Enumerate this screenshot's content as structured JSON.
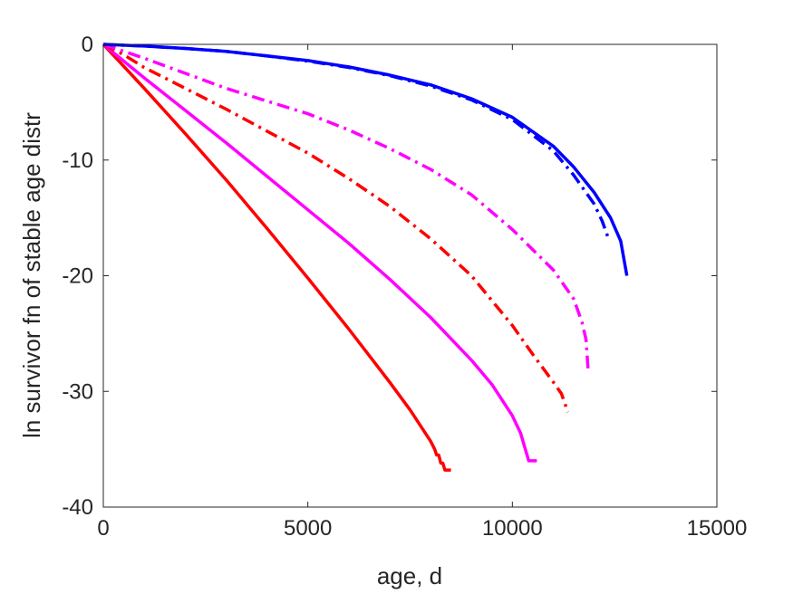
{
  "chart_data": {
    "type": "line",
    "title": "",
    "xlabel": "age, d",
    "ylabel": "ln survivor fn of stable age distr",
    "xlim": [
      0,
      15000
    ],
    "ylim": [
      -40,
      0
    ],
    "xticks": [
      0,
      5000,
      10000,
      15000
    ],
    "yticks": [
      0,
      -10,
      -20,
      -30,
      -40
    ],
    "xtick_labels": [
      "0",
      "5000",
      "10000",
      "15000"
    ],
    "ytick_labels": [
      "0",
      "-10",
      "-20",
      "-30",
      "-40"
    ],
    "grid": false,
    "legend": "none",
    "series": [
      {
        "color": "#ff0000",
        "style": "solid",
        "x": [
          0,
          1000,
          2000,
          3000,
          4000,
          5000,
          6000,
          7000,
          7500,
          8000,
          8100,
          8150,
          8200,
          8250,
          8300,
          8350,
          8500
        ],
        "y": [
          0,
          -3.8,
          -7.7,
          -11.7,
          -15.9,
          -20.2,
          -24.6,
          -29.2,
          -31.6,
          -34.3,
          -35.0,
          -35.5,
          -35.5,
          -36.2,
          -36.2,
          -36.8,
          -36.8
        ]
      },
      {
        "color": "#ff00ff",
        "style": "solid",
        "x": [
          0,
          1000,
          2000,
          3000,
          4000,
          5000,
          6000,
          7000,
          8000,
          9000,
          9500,
          10000,
          10200,
          10300,
          10400,
          10600
        ],
        "y": [
          0,
          -2.9,
          -5.7,
          -8.5,
          -11.4,
          -14.3,
          -17.2,
          -20.3,
          -23.6,
          -27.3,
          -29.4,
          -32.1,
          -33.6,
          -34.8,
          -36.0,
          -36.0
        ]
      },
      {
        "color": "#ff0000",
        "style": "dashdot",
        "x": [
          0,
          500,
          1000,
          2000,
          3000,
          4000,
          5000,
          6000,
          7000,
          8000,
          9000,
          10000,
          10500,
          11000,
          11200,
          11300,
          11350
        ],
        "y": [
          0,
          -0.9,
          -2.0,
          -3.8,
          -5.6,
          -7.5,
          -9.4,
          -11.6,
          -14.0,
          -16.8,
          -20.0,
          -24.3,
          -26.8,
          -29.2,
          -30.2,
          -31.2,
          -31.8
        ]
      },
      {
        "color": "#ff00ff",
        "style": "dashdot",
        "x": [
          0,
          500,
          1000,
          2000,
          3000,
          4000,
          5000,
          6000,
          7000,
          8000,
          9000,
          10000,
          11000,
          11500,
          11700,
          11800,
          11850
        ],
        "y": [
          0,
          -0.6,
          -1.2,
          -2.5,
          -3.8,
          -4.9,
          -6.0,
          -7.4,
          -9.0,
          -10.8,
          -13.0,
          -16.0,
          -19.5,
          -22.0,
          -24.0,
          -25.5,
          -28.0
        ]
      },
      {
        "color": "#0000ff",
        "style": "dashdot",
        "x": [
          0,
          1000,
          2000,
          3000,
          4000,
          5000,
          6000,
          7000,
          8000,
          9000,
          10000,
          11000,
          11500,
          12000,
          12200,
          12350
        ],
        "y": [
          0,
          -0.15,
          -0.35,
          -0.6,
          -1.0,
          -1.45,
          -2.0,
          -2.7,
          -3.6,
          -4.8,
          -6.5,
          -9.2,
          -11.3,
          -13.8,
          -15.3,
          -16.8
        ]
      },
      {
        "color": "#0000ff",
        "style": "solid",
        "x": [
          0,
          1000,
          2000,
          3000,
          4000,
          5000,
          6000,
          7000,
          8000,
          9000,
          10000,
          11000,
          11500,
          12000,
          12400,
          12650,
          12800
        ],
        "y": [
          0,
          -0.15,
          -0.35,
          -0.6,
          -1.0,
          -1.4,
          -1.95,
          -2.65,
          -3.5,
          -4.7,
          -6.3,
          -8.8,
          -10.6,
          -12.8,
          -15.0,
          -17.0,
          -20.0
        ]
      }
    ]
  }
}
